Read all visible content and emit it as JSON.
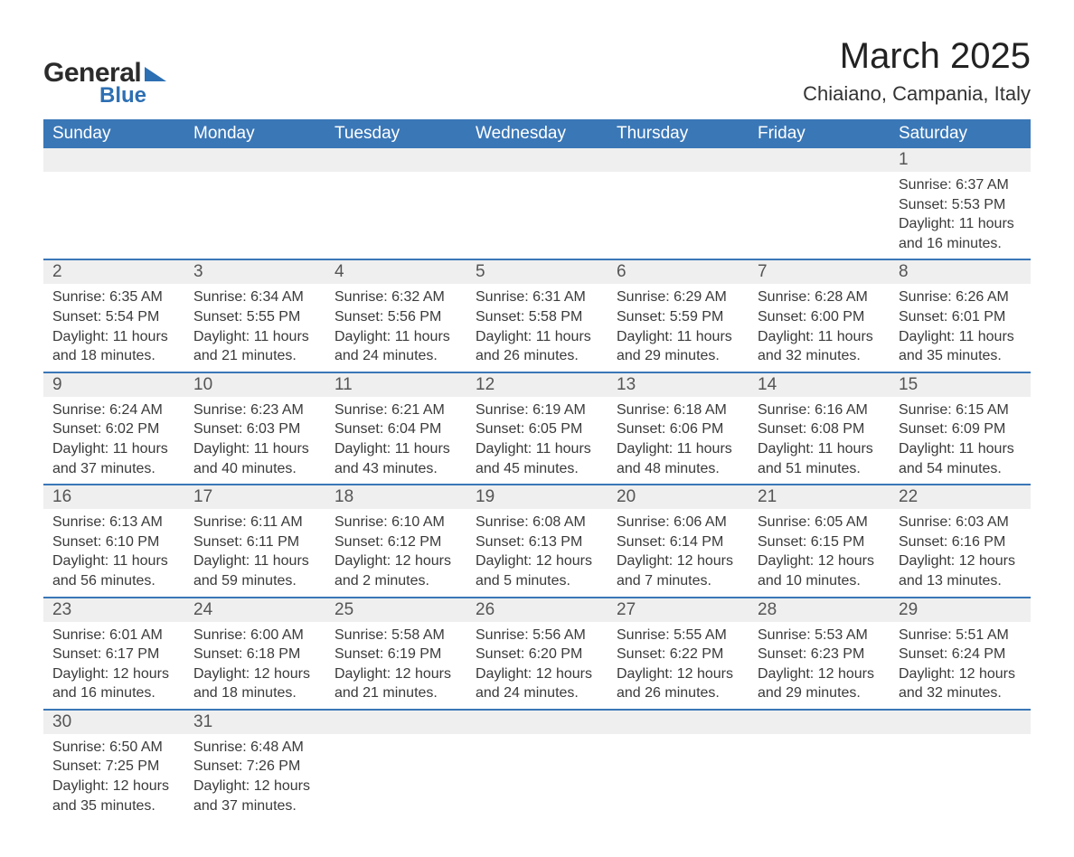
{
  "logo": {
    "line1": "General",
    "line2": "Blue"
  },
  "title": "March 2025",
  "location": "Chiaiano, Campania, Italy",
  "columns": [
    "Sunday",
    "Monday",
    "Tuesday",
    "Wednesday",
    "Thursday",
    "Friday",
    "Saturday"
  ],
  "header_bg": "#3a77b7",
  "header_text_color": "#ffffff",
  "daynum_bg": "#efefef",
  "border_color": "#3a77b7",
  "body_text_color": "#3a3a3a",
  "title_fontsize": 40,
  "location_fontsize": 22,
  "header_fontsize": 19,
  "daynum_fontsize": 19,
  "detail_fontsize": 16,
  "weeks": [
    [
      null,
      null,
      null,
      null,
      null,
      null,
      {
        "n": "1",
        "sr": "Sunrise: 6:37 AM",
        "ss": "Sunset: 5:53 PM",
        "d1": "Daylight: 11 hours",
        "d2": "and 16 minutes."
      }
    ],
    [
      {
        "n": "2",
        "sr": "Sunrise: 6:35 AM",
        "ss": "Sunset: 5:54 PM",
        "d1": "Daylight: 11 hours",
        "d2": "and 18 minutes."
      },
      {
        "n": "3",
        "sr": "Sunrise: 6:34 AM",
        "ss": "Sunset: 5:55 PM",
        "d1": "Daylight: 11 hours",
        "d2": "and 21 minutes."
      },
      {
        "n": "4",
        "sr": "Sunrise: 6:32 AM",
        "ss": "Sunset: 5:56 PM",
        "d1": "Daylight: 11 hours",
        "d2": "and 24 minutes."
      },
      {
        "n": "5",
        "sr": "Sunrise: 6:31 AM",
        "ss": "Sunset: 5:58 PM",
        "d1": "Daylight: 11 hours",
        "d2": "and 26 minutes."
      },
      {
        "n": "6",
        "sr": "Sunrise: 6:29 AM",
        "ss": "Sunset: 5:59 PM",
        "d1": "Daylight: 11 hours",
        "d2": "and 29 minutes."
      },
      {
        "n": "7",
        "sr": "Sunrise: 6:28 AM",
        "ss": "Sunset: 6:00 PM",
        "d1": "Daylight: 11 hours",
        "d2": "and 32 minutes."
      },
      {
        "n": "8",
        "sr": "Sunrise: 6:26 AM",
        "ss": "Sunset: 6:01 PM",
        "d1": "Daylight: 11 hours",
        "d2": "and 35 minutes."
      }
    ],
    [
      {
        "n": "9",
        "sr": "Sunrise: 6:24 AM",
        "ss": "Sunset: 6:02 PM",
        "d1": "Daylight: 11 hours",
        "d2": "and 37 minutes."
      },
      {
        "n": "10",
        "sr": "Sunrise: 6:23 AM",
        "ss": "Sunset: 6:03 PM",
        "d1": "Daylight: 11 hours",
        "d2": "and 40 minutes."
      },
      {
        "n": "11",
        "sr": "Sunrise: 6:21 AM",
        "ss": "Sunset: 6:04 PM",
        "d1": "Daylight: 11 hours",
        "d2": "and 43 minutes."
      },
      {
        "n": "12",
        "sr": "Sunrise: 6:19 AM",
        "ss": "Sunset: 6:05 PM",
        "d1": "Daylight: 11 hours",
        "d2": "and 45 minutes."
      },
      {
        "n": "13",
        "sr": "Sunrise: 6:18 AM",
        "ss": "Sunset: 6:06 PM",
        "d1": "Daylight: 11 hours",
        "d2": "and 48 minutes."
      },
      {
        "n": "14",
        "sr": "Sunrise: 6:16 AM",
        "ss": "Sunset: 6:08 PM",
        "d1": "Daylight: 11 hours",
        "d2": "and 51 minutes."
      },
      {
        "n": "15",
        "sr": "Sunrise: 6:15 AM",
        "ss": "Sunset: 6:09 PM",
        "d1": "Daylight: 11 hours",
        "d2": "and 54 minutes."
      }
    ],
    [
      {
        "n": "16",
        "sr": "Sunrise: 6:13 AM",
        "ss": "Sunset: 6:10 PM",
        "d1": "Daylight: 11 hours",
        "d2": "and 56 minutes."
      },
      {
        "n": "17",
        "sr": "Sunrise: 6:11 AM",
        "ss": "Sunset: 6:11 PM",
        "d1": "Daylight: 11 hours",
        "d2": "and 59 minutes."
      },
      {
        "n": "18",
        "sr": "Sunrise: 6:10 AM",
        "ss": "Sunset: 6:12 PM",
        "d1": "Daylight: 12 hours",
        "d2": "and 2 minutes."
      },
      {
        "n": "19",
        "sr": "Sunrise: 6:08 AM",
        "ss": "Sunset: 6:13 PM",
        "d1": "Daylight: 12 hours",
        "d2": "and 5 minutes."
      },
      {
        "n": "20",
        "sr": "Sunrise: 6:06 AM",
        "ss": "Sunset: 6:14 PM",
        "d1": "Daylight: 12 hours",
        "d2": "and 7 minutes."
      },
      {
        "n": "21",
        "sr": "Sunrise: 6:05 AM",
        "ss": "Sunset: 6:15 PM",
        "d1": "Daylight: 12 hours",
        "d2": "and 10 minutes."
      },
      {
        "n": "22",
        "sr": "Sunrise: 6:03 AM",
        "ss": "Sunset: 6:16 PM",
        "d1": "Daylight: 12 hours",
        "d2": "and 13 minutes."
      }
    ],
    [
      {
        "n": "23",
        "sr": "Sunrise: 6:01 AM",
        "ss": "Sunset: 6:17 PM",
        "d1": "Daylight: 12 hours",
        "d2": "and 16 minutes."
      },
      {
        "n": "24",
        "sr": "Sunrise: 6:00 AM",
        "ss": "Sunset: 6:18 PM",
        "d1": "Daylight: 12 hours",
        "d2": "and 18 minutes."
      },
      {
        "n": "25",
        "sr": "Sunrise: 5:58 AM",
        "ss": "Sunset: 6:19 PM",
        "d1": "Daylight: 12 hours",
        "d2": "and 21 minutes."
      },
      {
        "n": "26",
        "sr": "Sunrise: 5:56 AM",
        "ss": "Sunset: 6:20 PM",
        "d1": "Daylight: 12 hours",
        "d2": "and 24 minutes."
      },
      {
        "n": "27",
        "sr": "Sunrise: 5:55 AM",
        "ss": "Sunset: 6:22 PM",
        "d1": "Daylight: 12 hours",
        "d2": "and 26 minutes."
      },
      {
        "n": "28",
        "sr": "Sunrise: 5:53 AM",
        "ss": "Sunset: 6:23 PM",
        "d1": "Daylight: 12 hours",
        "d2": "and 29 minutes."
      },
      {
        "n": "29",
        "sr": "Sunrise: 5:51 AM",
        "ss": "Sunset: 6:24 PM",
        "d1": "Daylight: 12 hours",
        "d2": "and 32 minutes."
      }
    ],
    [
      {
        "n": "30",
        "sr": "Sunrise: 6:50 AM",
        "ss": "Sunset: 7:25 PM",
        "d1": "Daylight: 12 hours",
        "d2": "and 35 minutes."
      },
      {
        "n": "31",
        "sr": "Sunrise: 6:48 AM",
        "ss": "Sunset: 7:26 PM",
        "d1": "Daylight: 12 hours",
        "d2": "and 37 minutes."
      },
      null,
      null,
      null,
      null,
      null
    ]
  ]
}
